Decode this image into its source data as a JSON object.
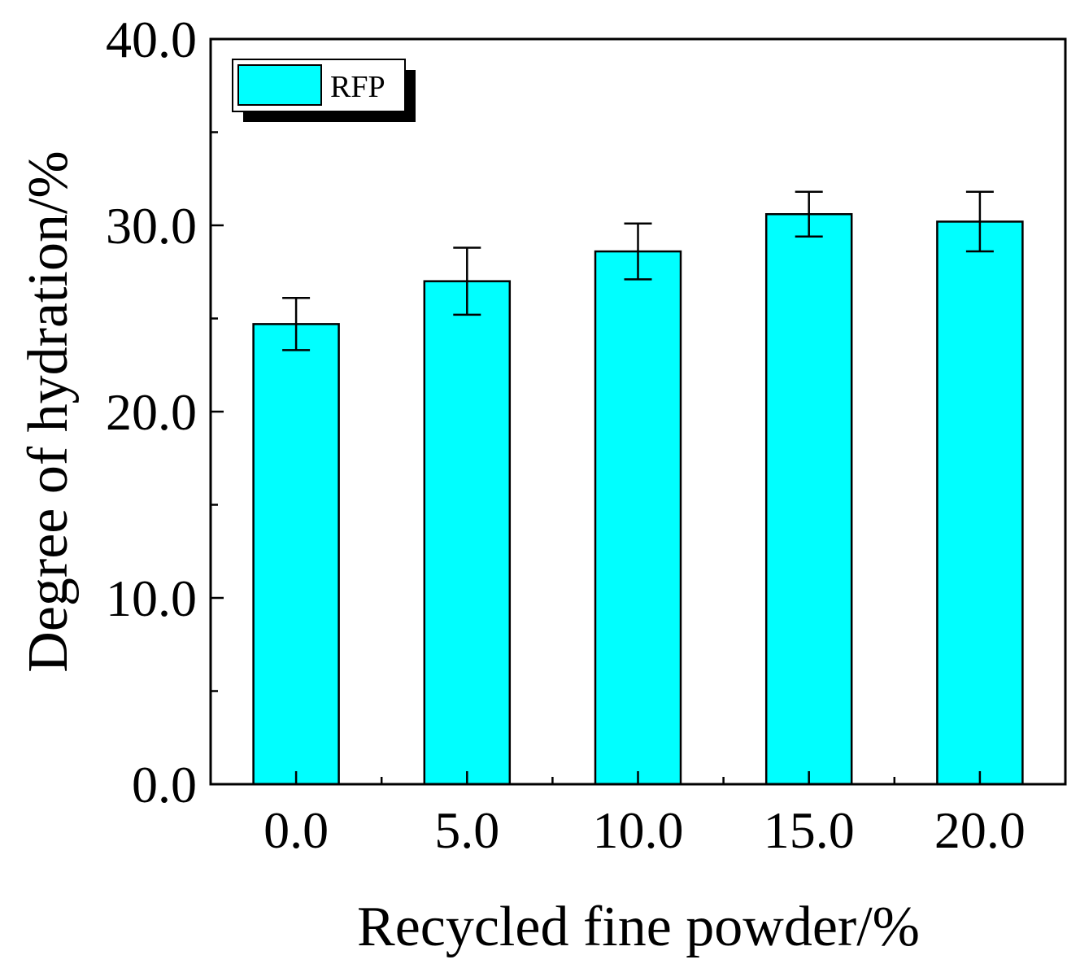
{
  "chart_data": {
    "type": "bar",
    "categories": [
      "0.0",
      "5.0",
      "10.0",
      "15.0",
      "20.0"
    ],
    "series": [
      {
        "name": "RFP",
        "values": [
          24.7,
          27.0,
          28.6,
          30.6,
          30.2
        ],
        "errors": [
          1.4,
          1.8,
          1.5,
          1.2,
          1.6
        ],
        "color": "#00ffff"
      }
    ],
    "xlabel": "Recycled fine powder/%",
    "ylabel": "Degree of hydration/%",
    "ylim": [
      0,
      40
    ],
    "yticks": [
      "0.0",
      "10.0",
      "20.0",
      "30.0",
      "40.0"
    ],
    "grid": false,
    "legend_position": "top-left"
  }
}
